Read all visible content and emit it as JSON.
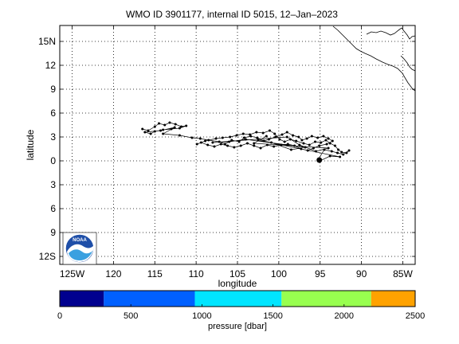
{
  "chart_data": [
    {
      "type": "scatter",
      "title": "WMO ID 3901177, internal ID 5015, 12–Jan–2023",
      "xlabel": "longitude",
      "ylabel": "latitude",
      "xlim": [
        -126.5,
        -83.5
      ],
      "ylim": [
        -13,
        17
      ],
      "grid": true,
      "x_ticks": [
        {
          "value": -125,
          "label": "125W"
        },
        {
          "value": -120,
          "label": "120"
        },
        {
          "value": -115,
          "label": "115"
        },
        {
          "value": -110,
          "label": "110"
        },
        {
          "value": -105,
          "label": "105"
        },
        {
          "value": -100,
          "label": "100"
        },
        {
          "value": -95,
          "label": "95"
        },
        {
          "value": -90,
          "label": "90"
        },
        {
          "value": -85,
          "label": "85W"
        }
      ],
      "y_ticks": [
        {
          "value": 15,
          "label": "15N"
        },
        {
          "value": 12,
          "label": "12"
        },
        {
          "value": 9,
          "label": "9"
        },
        {
          "value": 6,
          "label": "6"
        },
        {
          "value": 3,
          "label": "3"
        },
        {
          "value": 0,
          "label": "0"
        },
        {
          "value": -3,
          "label": "3"
        },
        {
          "value": -6,
          "label": "6"
        },
        {
          "value": -9,
          "label": "9"
        },
        {
          "value": -12,
          "label": "12S"
        }
      ],
      "series": [
        {
          "color": "#000000",
          "points": [
            [
              -116.5,
              4.0
            ],
            [
              -115.8,
              3.8
            ],
            [
              -115.0,
              4.3
            ],
            [
              -114.5,
              4.7
            ],
            [
              -113.8,
              4.5
            ],
            [
              -113.2,
              4.8
            ],
            [
              -112.5,
              4.6
            ],
            [
              -111.8,
              4.3
            ],
            [
              -111.2,
              4.4
            ],
            [
              -112.0,
              4.1
            ],
            [
              -113.0,
              4.0
            ],
            [
              -114.0,
              3.9
            ],
            [
              -115.0,
              3.7
            ],
            [
              -115.5,
              3.4
            ],
            [
              -116.2,
              3.6
            ],
            [
              -114.3,
              3.8
            ],
            [
              -112.6,
              4.2
            ],
            [
              -114.0,
              3.4
            ],
            [
              -112.0,
              3.2
            ],
            [
              -110.5,
              2.9
            ],
            [
              -109.5,
              2.8
            ],
            [
              -108.5,
              2.6
            ],
            [
              -107.2,
              2.4
            ],
            [
              -106.5,
              2.1
            ],
            [
              -105.7,
              2.6
            ],
            [
              -104.8,
              2.4
            ],
            [
              -104.2,
              2.9
            ],
            [
              -103.4,
              3.1
            ],
            [
              -102.6,
              2.9
            ],
            [
              -101.8,
              2.5
            ],
            [
              -101.2,
              2.7
            ],
            [
              -100.4,
              3.0
            ],
            [
              -99.6,
              3.3
            ],
            [
              -99.0,
              3.6
            ],
            [
              -98.3,
              3.2
            ],
            [
              -97.6,
              3.0
            ],
            [
              -97.2,
              2.6
            ],
            [
              -96.6,
              2.8
            ],
            [
              -96.0,
              3.1
            ],
            [
              -95.3,
              2.9
            ],
            [
              -94.6,
              3.1
            ],
            [
              -94.0,
              2.8
            ],
            [
              -93.5,
              2.5
            ],
            [
              -94.2,
              2.1
            ],
            [
              -95.1,
              1.9
            ],
            [
              -95.8,
              1.6
            ],
            [
              -96.5,
              1.3
            ],
            [
              -97.3,
              1.5
            ],
            [
              -98.1,
              1.9
            ],
            [
              -98.9,
              2.1
            ],
            [
              -99.7,
              2.0
            ],
            [
              -100.6,
              1.8
            ],
            [
              -101.4,
              2.0
            ],
            [
              -102.2,
              1.6
            ],
            [
              -103.0,
              1.9
            ],
            [
              -103.8,
              2.2
            ],
            [
              -104.6,
              1.9
            ],
            [
              -105.4,
              1.7
            ],
            [
              -106.2,
              1.9
            ],
            [
              -107.0,
              2.1
            ],
            [
              -107.8,
              1.8
            ],
            [
              -108.6,
              2.0
            ],
            [
              -109.4,
              2.3
            ],
            [
              -109.9,
              2.1
            ],
            [
              -108.9,
              2.5
            ],
            [
              -107.6,
              2.8
            ],
            [
              -106.8,
              2.9
            ],
            [
              -105.9,
              3.0
            ],
            [
              -105.1,
              3.2
            ],
            [
              -104.3,
              3.4
            ],
            [
              -103.5,
              3.3
            ],
            [
              -102.7,
              3.6
            ],
            [
              -101.9,
              3.5
            ],
            [
              -101.1,
              3.8
            ],
            [
              -100.5,
              3.4
            ],
            [
              -99.9,
              2.7
            ],
            [
              -99.3,
              2.4
            ],
            [
              -98.6,
              2.7
            ],
            [
              -97.9,
              2.5
            ],
            [
              -97.0,
              2.2
            ],
            [
              -96.3,
              2.0
            ],
            [
              -95.6,
              2.4
            ],
            [
              -94.9,
              2.3
            ],
            [
              -94.3,
              2.6
            ],
            [
              -93.8,
              2.2
            ],
            [
              -93.2,
              1.9
            ],
            [
              -92.8,
              1.4
            ],
            [
              -92.4,
              1.1
            ],
            [
              -91.8,
              1.0
            ],
            [
              -91.5,
              1.3
            ],
            [
              -92.2,
              0.8
            ],
            [
              -92.9,
              1.0
            ],
            [
              -93.6,
              1.2
            ],
            [
              -94.5,
              1.4
            ],
            [
              -95.2,
              0.2
            ],
            [
              -95.0,
              0.0
            ],
            [
              -93.8,
              0.6
            ],
            [
              -92.6,
              0.5
            ],
            [
              -102.5,
              2.6
            ],
            [
              -100.9,
              2.3
            ],
            [
              -98.5,
              1.4
            ],
            [
              -96.8,
              1.7
            ],
            [
              -104.0,
              2.7
            ],
            [
              -106.0,
              2.4
            ],
            [
              -108.0,
              2.3
            ],
            [
              -99.0,
              3.0
            ],
            [
              -97.5,
              2.0
            ],
            [
              -95.5,
              1.2
            ],
            [
              -94.0,
              1.6
            ],
            [
              -103.0,
              2.2
            ],
            [
              -101.5,
              3.1
            ]
          ],
          "start": [
            -91.5,
            1.2
          ],
          "end": [
            -95.1,
            0.1
          ]
        }
      ]
    },
    {
      "type": "heatmap",
      "colorbar_label": "pressure [dbar]",
      "ticks": [
        {
          "value": 0,
          "label": "0"
        },
        {
          "value": 500,
          "label": "500"
        },
        {
          "value": 1000,
          "label": "1000"
        },
        {
          "value": 1500,
          "label": "1500"
        },
        {
          "value": 2000,
          "label": "2000"
        },
        {
          "value": 2500,
          "label": "2500"
        }
      ],
      "range": [
        0,
        2500
      ],
      "bins": [
        {
          "from": 0,
          "to": 310,
          "color": "#00008f"
        },
        {
          "from": 310,
          "to": 950,
          "color": "#0060ff"
        },
        {
          "from": 950,
          "to": 1560,
          "color": "#00e5ff"
        },
        {
          "from": 1560,
          "to": 2190,
          "color": "#98ff4f"
        },
        {
          "from": 2190,
          "to": 2500,
          "color": "#ffa200"
        }
      ]
    }
  ],
  "logo": {
    "text": "NOAA",
    "name": "noaa-logo"
  }
}
